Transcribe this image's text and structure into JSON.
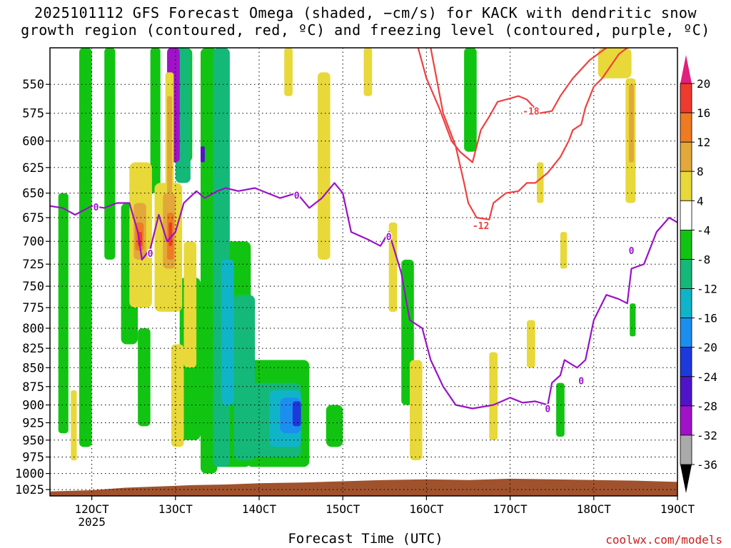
{
  "title": {
    "line1": "2025101112 GFS Forecast Omega (shaded, −cm/s) for KACK with dendritic snow",
    "line2": "growth region (contoured, red, ºC) and freezing level (contoured, purple, ºC)"
  },
  "xlabel": "Forecast Time (UTC)",
  "credit": "coolwx.com/models",
  "chart_data": {
    "type": "heatmap",
    "title": "2025101112 GFS Forecast Omega (shaded, −cm/s) for KACK with dendritic snow growth region (contoured, red, ºC) and freezing level (contoured, purple, ºC)",
    "xlabel": "Forecast Time (UTC)",
    "ylabel": "",
    "x_unit": "day (October 2025, UTC)",
    "y_unit": "hPa",
    "xlim": [
      11.5,
      19.0
    ],
    "ylim": [
      1035,
      520
    ],
    "y_scale": "log",
    "grid": true,
    "x_ticks": [
      {
        "value": 12,
        "label": "12OCT",
        "sublabel": "2025"
      },
      {
        "value": 13,
        "label": "13OCT"
      },
      {
        "value": 14,
        "label": "14OCT"
      },
      {
        "value": 15,
        "label": "15OCT"
      },
      {
        "value": 16,
        "label": "16OCT"
      },
      {
        "value": 17,
        "label": "17OCT"
      },
      {
        "value": 18,
        "label": "18OCT"
      },
      {
        "value": 19,
        "label": "19OCT"
      }
    ],
    "y_ticks": [
      550,
      575,
      600,
      625,
      650,
      675,
      700,
      725,
      750,
      775,
      800,
      825,
      850,
      875,
      900,
      925,
      950,
      975,
      1000,
      1025
    ],
    "colorbar": {
      "labels": [
        20,
        16,
        12,
        8,
        4,
        -4,
        -8,
        -12,
        -16,
        -20,
        -24,
        -28,
        -32,
        -36
      ],
      "bins": [
        {
          "range": [
            20,
            99
          ],
          "color": "#e0207a"
        },
        {
          "range": [
            16,
            20
          ],
          "color": "#ef3a2e"
        },
        {
          "range": [
            12,
            16
          ],
          "color": "#ee7b22"
        },
        {
          "range": [
            8,
            12
          ],
          "color": "#e2a83a"
        },
        {
          "range": [
            4,
            8
          ],
          "color": "#e8d83a"
        },
        {
          "range": [
            -4,
            4
          ],
          "color": "#ffffff"
        },
        {
          "range": [
            -8,
            -4
          ],
          "color": "#12c412"
        },
        {
          "range": [
            -12,
            -8
          ],
          "color": "#14b878"
        },
        {
          "range": [
            -16,
            -12
          ],
          "color": "#10b4c8"
        },
        {
          "range": [
            -20,
            -16
          ],
          "color": "#1c8ef0"
        },
        {
          "range": [
            -24,
            -20
          ],
          "color": "#1c3adc"
        },
        {
          "range": [
            -28,
            -24
          ],
          "color": "#5014c8"
        },
        {
          "range": [
            -32,
            -28
          ],
          "color": "#a012c8"
        },
        {
          "range": [
            -36,
            -32
          ],
          "color": "#aaaaaa"
        },
        {
          "range": [
            -99,
            -36
          ],
          "color": "#000000"
        }
      ]
    },
    "omega_regions": [
      {
        "value": -6,
        "x": [
          11.6,
          11.72
        ],
        "p": [
          650,
          940
        ]
      },
      {
        "value": -6,
        "x": [
          11.85,
          12.0
        ],
        "p": [
          520,
          960
        ]
      },
      {
        "value": -6,
        "x": [
          12.15,
          12.28
        ],
        "p": [
          520,
          720
        ]
      },
      {
        "value": -6,
        "x": [
          12.35,
          12.55
        ],
        "p": [
          660,
          820
        ]
      },
      {
        "value": -6,
        "x": [
          12.55,
          12.7
        ],
        "p": [
          800,
          930
        ]
      },
      {
        "value": -6,
        "x": [
          12.7,
          12.82
        ],
        "p": [
          520,
          650
        ]
      },
      {
        "value": -6,
        "x": [
          12.9,
          13.2
        ],
        "p": [
          520,
          620
        ]
      },
      {
        "value": -6,
        "x": [
          13.05,
          13.3
        ],
        "p": [
          740,
          950
        ]
      },
      {
        "value": -6,
        "x": [
          13.3,
          13.5
        ],
        "p": [
          520,
          1000
        ]
      },
      {
        "value": -6,
        "x": [
          13.5,
          13.9
        ],
        "p": [
          700,
          990
        ]
      },
      {
        "value": -6,
        "x": [
          13.85,
          14.6
        ],
        "p": [
          840,
          990
        ]
      },
      {
        "value": -6,
        "x": [
          14.8,
          15.0
        ],
        "p": [
          900,
          960
        ]
      },
      {
        "value": -6,
        "x": [
          15.7,
          15.85
        ],
        "p": [
          720,
          900
        ]
      },
      {
        "value": -6,
        "x": [
          16.45,
          16.6
        ],
        "p": [
          520,
          610
        ]
      },
      {
        "value": -6,
        "x": [
          17.55,
          17.65
        ],
        "p": [
          870,
          945
        ]
      },
      {
        "value": -6,
        "x": [
          18.43,
          18.5
        ],
        "p": [
          770,
          810
        ]
      },
      {
        "value": -10,
        "x": [
          13.0,
          13.18
        ],
        "p": [
          520,
          640
        ]
      },
      {
        "value": -10,
        "x": [
          13.45,
          13.65
        ],
        "p": [
          520,
          990
        ]
      },
      {
        "value": -10,
        "x": [
          13.7,
          13.95
        ],
        "p": [
          760,
          980
        ]
      },
      {
        "value": -10,
        "x": [
          13.92,
          14.5
        ],
        "p": [
          870,
          975
        ]
      },
      {
        "value": -14,
        "x": [
          13.55,
          13.7
        ],
        "p": [
          720,
          900
        ]
      },
      {
        "value": -14,
        "x": [
          14.12,
          14.5
        ],
        "p": [
          880,
          960
        ]
      },
      {
        "value": -18,
        "x": [
          14.25,
          14.5
        ],
        "p": [
          890,
          940
        ]
      },
      {
        "value": -22,
        "x": [
          14.4,
          14.5
        ],
        "p": [
          895,
          930
        ]
      },
      {
        "value": -30,
        "x": [
          12.9,
          13.05
        ],
        "p": [
          520,
          620
        ]
      },
      {
        "value": -26,
        "x": [
          13.3,
          13.35
        ],
        "p": [
          605,
          620
        ]
      },
      {
        "value": 6,
        "x": [
          11.75,
          11.82
        ],
        "p": [
          880,
          980
        ]
      },
      {
        "value": 6,
        "x": [
          12.45,
          12.72
        ],
        "p": [
          620,
          775
        ]
      },
      {
        "value": 6,
        "x": [
          12.75,
          13.08
        ],
        "p": [
          640,
          780
        ]
      },
      {
        "value": 6,
        "x": [
          12.88,
          12.98
        ],
        "p": [
          540,
          700
        ]
      },
      {
        "value": 6,
        "x": [
          13.1,
          13.25
        ],
        "p": [
          700,
          850
        ]
      },
      {
        "value": 6,
        "x": [
          12.95,
          13.1
        ],
        "p": [
          820,
          960
        ]
      },
      {
        "value": 6,
        "x": [
          14.3,
          14.4
        ],
        "p": [
          520,
          560
        ]
      },
      {
        "value": 6,
        "x": [
          14.7,
          14.85
        ],
        "p": [
          540,
          720
        ]
      },
      {
        "value": 6,
        "x": [
          15.25,
          15.35
        ],
        "p": [
          520,
          560
        ]
      },
      {
        "value": 6,
        "x": [
          15.55,
          15.65
        ],
        "p": [
          680,
          780
        ]
      },
      {
        "value": 6,
        "x": [
          15.8,
          15.95
        ],
        "p": [
          840,
          980
        ]
      },
      {
        "value": 6,
        "x": [
          16.75,
          16.85
        ],
        "p": [
          830,
          950
        ]
      },
      {
        "value": 6,
        "x": [
          17.2,
          17.3
        ],
        "p": [
          790,
          850
        ]
      },
      {
        "value": 6,
        "x": [
          17.32,
          17.4
        ],
        "p": [
          620,
          660
        ]
      },
      {
        "value": 6,
        "x": [
          17.6,
          17.68
        ],
        "p": [
          690,
          730
        ]
      },
      {
        "value": 6,
        "x": [
          18.05,
          18.45
        ],
        "p": [
          520,
          545
        ]
      },
      {
        "value": 6,
        "x": [
          18.38,
          18.5
        ],
        "p": [
          545,
          660
        ]
      },
      {
        "value": 10,
        "x": [
          12.5,
          12.65
        ],
        "p": [
          660,
          720
        ]
      },
      {
        "value": 10,
        "x": [
          12.85,
          13.0
        ],
        "p": [
          650,
          730
        ]
      },
      {
        "value": 10,
        "x": [
          12.9,
          12.96
        ],
        "p": [
          560,
          650
        ]
      },
      {
        "value": 10,
        "x": [
          18.42,
          18.48
        ],
        "p": [
          550,
          620
        ]
      },
      {
        "value": 14,
        "x": [
          12.52,
          12.62
        ],
        "p": [
          680,
          710
        ]
      },
      {
        "value": 14,
        "x": [
          12.9,
          12.98
        ],
        "p": [
          670,
          720
        ]
      },
      {
        "value": 18,
        "x": [
          12.55,
          12.6
        ],
        "p": [
          690,
          705
        ]
      },
      {
        "value": 18,
        "x": [
          12.92,
          12.96
        ],
        "p": [
          680,
          705
        ]
      }
    ],
    "dendritic_contours": [
      {
        "value": -12,
        "label": "-12",
        "label_at": [
          16.65,
          683
        ],
        "points": [
          [
            16.05,
            520
          ],
          [
            16.2,
            575
          ],
          [
            16.35,
            605
          ],
          [
            16.45,
            640
          ],
          [
            16.5,
            660
          ],
          [
            16.6,
            675
          ],
          [
            16.75,
            677
          ],
          [
            16.8,
            660
          ],
          [
            16.95,
            650
          ],
          [
            17.1,
            648
          ],
          [
            17.2,
            640
          ],
          [
            17.3,
            640
          ],
          [
            17.45,
            630
          ],
          [
            17.6,
            615
          ],
          [
            17.7,
            600
          ],
          [
            17.75,
            590
          ],
          [
            17.85,
            585
          ],
          [
            17.9,
            570
          ],
          [
            18.0,
            552
          ],
          [
            18.1,
            545
          ],
          [
            18.2,
            535
          ],
          [
            18.3,
            525
          ],
          [
            18.4,
            520
          ],
          [
            18.55,
            505
          ]
        ]
      },
      {
        "value": -18,
        "label": "-18",
        "label_at": [
          17.25,
          573
        ],
        "points": [
          [
            15.9,
            520
          ],
          [
            16.0,
            545
          ],
          [
            16.15,
            570
          ],
          [
            16.3,
            600
          ],
          [
            16.4,
            610
          ],
          [
            16.55,
            620
          ],
          [
            16.65,
            590
          ],
          [
            16.75,
            578
          ],
          [
            16.85,
            565
          ],
          [
            17.0,
            562
          ],
          [
            17.1,
            560
          ],
          [
            17.2,
            563
          ],
          [
            17.35,
            575
          ],
          [
            17.5,
            573
          ],
          [
            17.6,
            560
          ],
          [
            17.75,
            545
          ],
          [
            17.95,
            530
          ],
          [
            18.15,
            520
          ]
        ]
      }
    ],
    "freezing_level": {
      "value": 0,
      "label": "0",
      "label_positions": [
        [
          12.05,
          664
        ],
        [
          12.7,
          713
        ],
        [
          14.45,
          652
        ],
        [
          15.55,
          695
        ],
        [
          17.85,
          867
        ],
        [
          18.45,
          710
        ],
        [
          17.45,
          905
        ]
      ],
      "points": [
        [
          11.5,
          663
        ],
        [
          11.65,
          665
        ],
        [
          11.8,
          672
        ],
        [
          12.0,
          663
        ],
        [
          12.15,
          665
        ],
        [
          12.3,
          660
        ],
        [
          12.45,
          660
        ],
        [
          12.55,
          690
        ],
        [
          12.6,
          720
        ],
        [
          12.7,
          708
        ],
        [
          12.8,
          672
        ],
        [
          12.9,
          700
        ],
        [
          13.0,
          690
        ],
        [
          13.1,
          660
        ],
        [
          13.25,
          648
        ],
        [
          13.35,
          655
        ],
        [
          13.5,
          648
        ],
        [
          13.6,
          645
        ],
        [
          13.75,
          648
        ],
        [
          13.95,
          645
        ],
        [
          14.1,
          650
        ],
        [
          14.25,
          655
        ],
        [
          14.45,
          650
        ],
        [
          14.6,
          665
        ],
        [
          14.75,
          655
        ],
        [
          14.9,
          640
        ],
        [
          15.0,
          650
        ],
        [
          15.1,
          690
        ],
        [
          15.3,
          698
        ],
        [
          15.45,
          705
        ],
        [
          15.55,
          690
        ],
        [
          15.7,
          735
        ],
        [
          15.8,
          790
        ],
        [
          15.95,
          800
        ],
        [
          16.05,
          840
        ],
        [
          16.2,
          875
        ],
        [
          16.35,
          900
        ],
        [
          16.55,
          905
        ],
        [
          16.8,
          900
        ],
        [
          17.0,
          890
        ],
        [
          17.15,
          897
        ],
        [
          17.3,
          895
        ],
        [
          17.45,
          900
        ],
        [
          17.5,
          870
        ],
        [
          17.6,
          860
        ],
        [
          17.65,
          840
        ],
        [
          17.8,
          850
        ],
        [
          17.9,
          840
        ],
        [
          18.0,
          790
        ],
        [
          18.15,
          760
        ],
        [
          18.3,
          765
        ],
        [
          18.4,
          770
        ],
        [
          18.45,
          730
        ],
        [
          18.6,
          725
        ],
        [
          18.75,
          690
        ],
        [
          18.9,
          675
        ],
        [
          19.0,
          680
        ]
      ]
    },
    "terrain": {
      "color": "#a0522d",
      "surface_pressure": [
        [
          11.5,
          1028
        ],
        [
          12.0,
          1026
        ],
        [
          12.4,
          1022
        ],
        [
          12.8,
          1020
        ],
        [
          13.2,
          1018
        ],
        [
          13.6,
          1017
        ],
        [
          14.0,
          1015
        ],
        [
          14.5,
          1014
        ],
        [
          15.0,
          1012
        ],
        [
          15.5,
          1010
        ],
        [
          16.0,
          1009
        ],
        [
          16.5,
          1010
        ],
        [
          17.0,
          1008
        ],
        [
          17.5,
          1009
        ],
        [
          18.0,
          1010
        ],
        [
          18.5,
          1011
        ],
        [
          19.0,
          1013
        ]
      ]
    }
  }
}
